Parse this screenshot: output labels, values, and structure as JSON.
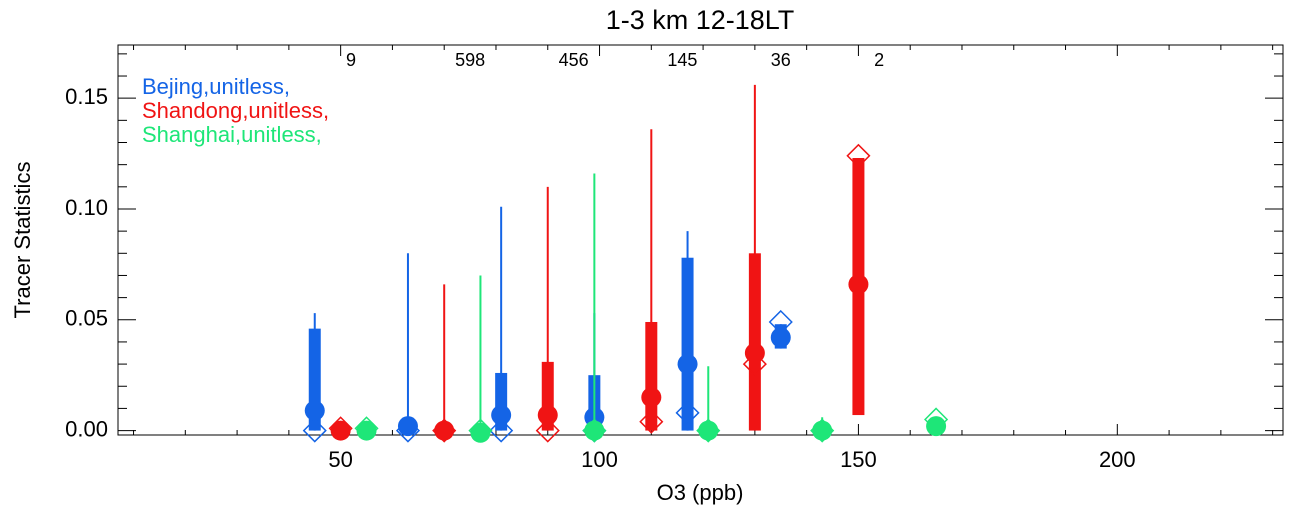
{
  "chart_data": {
    "type": "errorbar",
    "title": "1-3 km 12-18LT",
    "x_label": "O3 (ppb)",
    "y_label": "Tracer Statistics",
    "xlim": [
      7,
      232
    ],
    "ylim": [
      -0.002,
      0.174
    ],
    "xticks": [
      50,
      100,
      150,
      200
    ],
    "yticks": [
      {
        "value": 0,
        "label": "0.00"
      },
      {
        "value": 0.05,
        "label": "0.05"
      },
      {
        "value": 0.1,
        "label": "0.10"
      },
      {
        "value": 0.15,
        "label": "0.15"
      }
    ],
    "xticks_minor": [
      10,
      20,
      30,
      40,
      60,
      70,
      80,
      90,
      110,
      120,
      130,
      140,
      160,
      170,
      180,
      190,
      210,
      220,
      230
    ],
    "yticks_minor": [
      0.01,
      0.02,
      0.03,
      0.04,
      0.06,
      0.07,
      0.08,
      0.09,
      0.11,
      0.12,
      0.13,
      0.14,
      0.16,
      0.17
    ],
    "counts": [
      9,
      598,
      456,
      145,
      36,
      2
    ],
    "count_x": [
      52,
      75,
      95,
      116,
      135,
      154
    ],
    "series": [
      {
        "name": "Bejing,unitless,",
        "color": "#1464e6",
        "x": [
          45,
          63,
          81,
          99,
          117,
          135
        ],
        "values": [
          0.009,
          0.002,
          0.007,
          0.006,
          0.03,
          0.042
        ],
        "diamond_values": [
          0,
          0,
          0,
          0,
          0.008,
          0.049
        ],
        "bar_low": [
          0,
          0,
          0,
          0,
          0,
          0.037
        ],
        "bar_high": [
          0.046,
          0.003,
          0.026,
          0.025,
          0.078,
          0.048
        ],
        "whisker_high": [
          0.053,
          0.08,
          0.101,
          0.053,
          0.09,
          0.048
        ]
      },
      {
        "name": "Shandong,unitless,",
        "color": "#f01414",
        "x": [
          50,
          70,
          90,
          110,
          130,
          150
        ],
        "values": [
          0,
          0,
          0.007,
          0.015,
          0.035,
          0.066
        ],
        "diamond_values": [
          0.001,
          0,
          0,
          0.004,
          0.03,
          0.124
        ],
        "bar_low": [
          0,
          0,
          0,
          0,
          0,
          0.007
        ],
        "bar_high": [
          0.001,
          0.001,
          0.031,
          0.049,
          0.08,
          0.123
        ],
        "whisker_high": [
          0.002,
          0.066,
          0.11,
          0.136,
          0.156,
          0.123
        ]
      },
      {
        "name": "Shanghai,unitless,",
        "color": "#1ee678",
        "x": [
          55,
          77,
          99,
          121,
          143,
          165
        ],
        "values": [
          0,
          -0.001,
          0,
          0,
          0,
          0.002
        ],
        "diamond_values": [
          0.001,
          0,
          0,
          0,
          0,
          0.005
        ],
        "bar_low": [
          0,
          0,
          0,
          0,
          0,
          0
        ],
        "bar_high": [
          0.001,
          0.001,
          0.001,
          0.001,
          0.001,
          0.004
        ],
        "whisker_high": [
          0.002,
          0.07,
          0.116,
          0.029,
          0.006,
          0.005
        ]
      }
    ]
  }
}
